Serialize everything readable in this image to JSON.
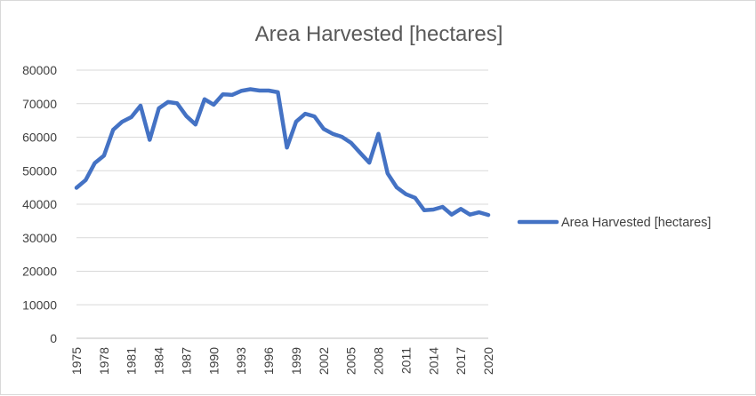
{
  "chart_data": {
    "type": "line",
    "title": "Area Harvested [hectares]",
    "xlabel": "",
    "ylabel": "",
    "x": [
      1975,
      1976,
      1977,
      1978,
      1979,
      1980,
      1981,
      1982,
      1983,
      1984,
      1985,
      1986,
      1987,
      1988,
      1989,
      1990,
      1991,
      1992,
      1993,
      1994,
      1995,
      1996,
      1997,
      1998,
      1999,
      2000,
      2001,
      2002,
      2003,
      2004,
      2005,
      2006,
      2007,
      2008,
      2009,
      2010,
      2011,
      2012,
      2013,
      2014,
      2015,
      2016,
      2017,
      2018,
      2019,
      2020
    ],
    "x_tick_labels": [
      "1975",
      "1978",
      "1981",
      "1984",
      "1987",
      "1990",
      "1993",
      "1996",
      "1999",
      "2002",
      "2005",
      "2008",
      "2011",
      "2014",
      "2017",
      "2020"
    ],
    "ylim": [
      0,
      80000
    ],
    "y_tick_labels": [
      "0",
      "10000",
      "20000",
      "30000",
      "40000",
      "50000",
      "60000",
      "70000",
      "80000"
    ],
    "grid": true,
    "legend_position": "right",
    "series": [
      {
        "name": "Area Harvested [hectares]",
        "color": "#4472c4",
        "values": [
          44900,
          47200,
          52300,
          54500,
          62200,
          64600,
          66000,
          69400,
          59200,
          68600,
          70500,
          70100,
          66300,
          63800,
          71300,
          69700,
          72800,
          72600,
          73800,
          74300,
          73900,
          73900,
          73400,
          56900,
          64600,
          67000,
          66200,
          62500,
          61000,
          60100,
          58300,
          55300,
          52400,
          61000,
          49200,
          45000,
          43000,
          41900,
          38200,
          38400,
          39200,
          36900,
          38600,
          36900,
          37600,
          36800
        ]
      }
    ]
  }
}
